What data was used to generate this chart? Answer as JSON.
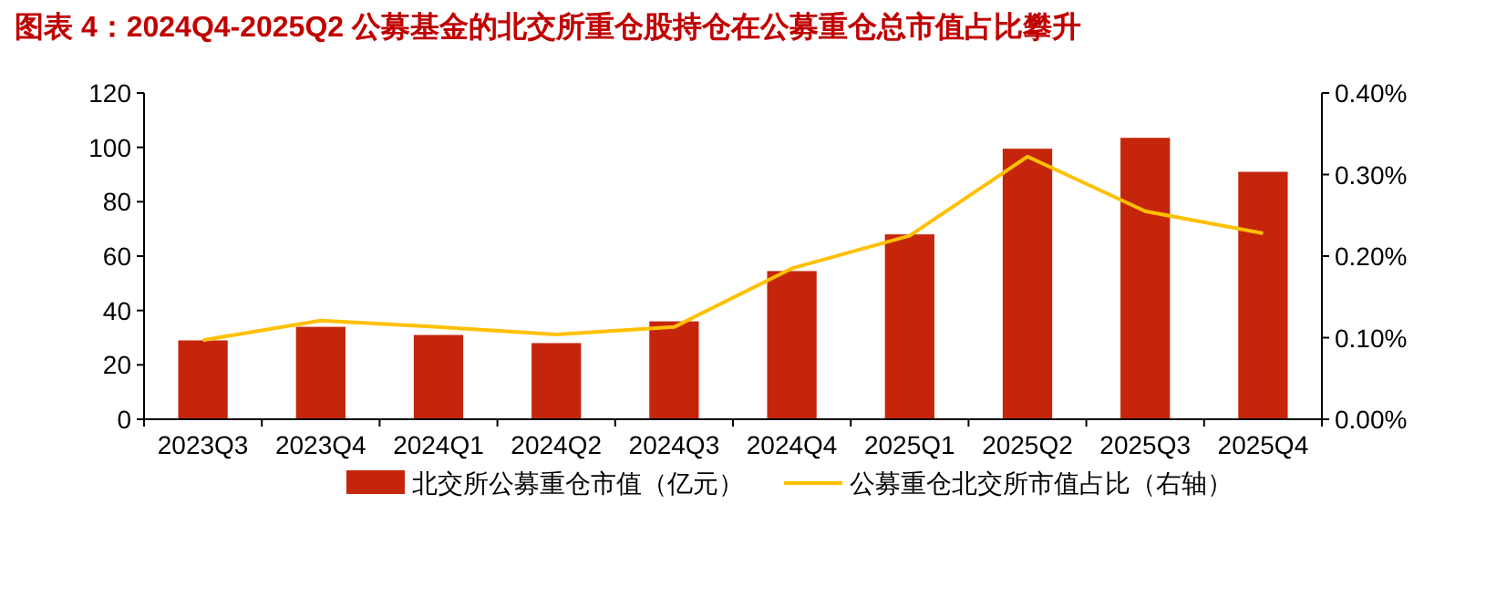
{
  "chart_data": {
    "type": "bar",
    "title": "图表 4：2024Q4-2025Q2 公募基金的北交所重仓股持仓在公募重仓总市值占比攀升",
    "categories": [
      "2023Q3",
      "2023Q4",
      "2024Q1",
      "2024Q2",
      "2024Q3",
      "2024Q4",
      "2025Q1",
      "2025Q2",
      "2025Q3",
      "2025Q4"
    ],
    "series": [
      {
        "name": "北交所公募重仓市值（亿元）",
        "color": "#c5260b",
        "values": [
          29,
          34,
          31,
          28,
          36,
          54.5,
          68,
          99.5,
          103.5,
          91
        ]
      },
      {
        "name": "公募重仓北交所市值占比（右轴）",
        "type": "line",
        "axis": "y2",
        "color": "#ffc000",
        "values": [
          0.097,
          0.121,
          0.113,
          0.104,
          0.113,
          0.185,
          0.225,
          0.322,
          0.255,
          0.228
        ]
      }
    ],
    "ylim": [
      0,
      120
    ],
    "yticks": [
      0,
      20,
      40,
      60,
      80,
      100,
      120
    ],
    "y2lim": [
      0,
      0.4
    ],
    "y2ticks": [
      {
        "value": 0,
        "label": "0.00%"
      },
      {
        "value": 0.1,
        "label": "0.10%"
      },
      {
        "value": 0.2,
        "label": "0.20%"
      },
      {
        "value": 0.3,
        "label": "0.30%"
      },
      {
        "value": 0.4,
        "label": "0.40%"
      }
    ],
    "legend": "bottom",
    "grid": false
  }
}
